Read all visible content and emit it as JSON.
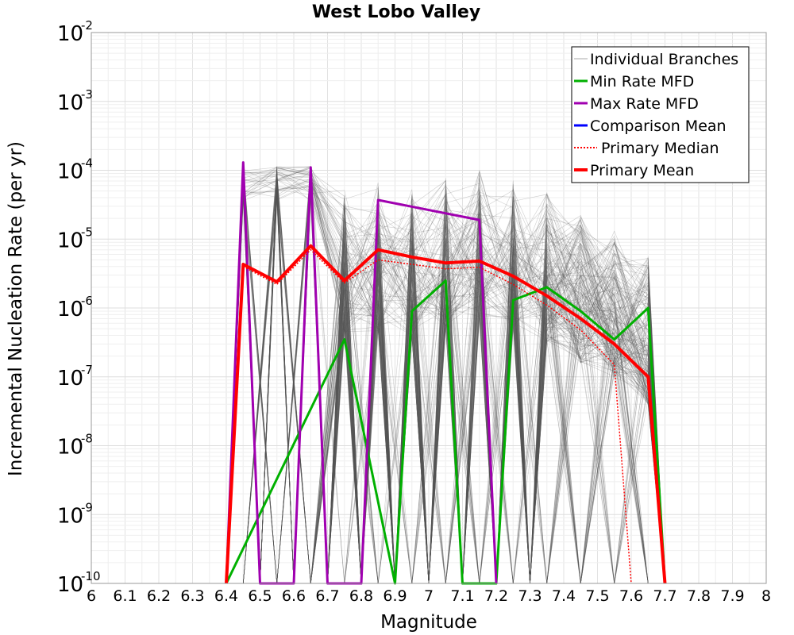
{
  "chart_data": {
    "type": "line",
    "title": "West Lobo Valley",
    "xlabel": "Magnitude",
    "ylabel": "Incremental Nucleation Rate (per yr)",
    "xlim": [
      6,
      8
    ],
    "ylim": [
      1e-10,
      0.01
    ],
    "yscale": "log",
    "grid": true,
    "legend_position": "top-right",
    "x_ticks": [
      "6",
      "6.1",
      "6.2",
      "6.3",
      "6.4",
      "6.5",
      "6.6",
      "6.7",
      "6.8",
      "6.9",
      "7",
      "7.1",
      "7.2",
      "7.3",
      "7.4",
      "7.5",
      "7.6",
      "7.7",
      "7.8",
      "7.9",
      "8"
    ],
    "y_ticks": [
      {
        "base": "10",
        "exp": "-2"
      },
      {
        "base": "10",
        "exp": "-3"
      },
      {
        "base": "10",
        "exp": "-4"
      },
      {
        "base": "10",
        "exp": "-5"
      },
      {
        "base": "10",
        "exp": "-6"
      },
      {
        "base": "10",
        "exp": "-7"
      },
      {
        "base": "10",
        "exp": "-8"
      },
      {
        "base": "10",
        "exp": "-9"
      },
      {
        "base": "10",
        "exp": "-10"
      }
    ],
    "bins": [
      6.45,
      6.55,
      6.65,
      6.75,
      6.85,
      6.95,
      7.05,
      7.15,
      7.25,
      7.35,
      7.45,
      7.55,
      7.65
    ],
    "series": [
      {
        "name": "Individual Branches",
        "color": "#555555",
        "style": "thin",
        "note": "hundreds of logic-tree branches forming a dense gray band",
        "peaks": [
          0.00012,
          0.000115,
          0.000115,
          6e-05,
          7e-05,
          6e-05,
          8e-05,
          0.00011,
          8e-05,
          5e-05,
          2.5e-05,
          1.5e-05,
          6e-06
        ]
      },
      {
        "name": "Min Rate MFD",
        "color": "#00b000",
        "points": [
          [
            6.4,
            1e-10
          ],
          [
            6.75,
            3.5e-07
          ],
          [
            6.9,
            1e-10
          ],
          [
            6.95,
            9e-07
          ],
          [
            7.05,
            2.5e-06
          ],
          [
            7.1,
            1e-10
          ],
          [
            7.2,
            1e-10
          ],
          [
            7.25,
            1.3e-06
          ],
          [
            7.35,
            2e-06
          ],
          [
            7.45,
            9e-07
          ],
          [
            7.55,
            3.5e-07
          ],
          [
            7.65,
            1e-06
          ],
          [
            7.7,
            1e-10
          ]
        ]
      },
      {
        "name": "Max Rate MFD",
        "color": "#a000b0",
        "points": [
          [
            6.4,
            1e-10
          ],
          [
            6.45,
            0.00013
          ],
          [
            6.5,
            1e-10
          ],
          [
            6.6,
            1e-10
          ],
          [
            6.65,
            0.00011
          ],
          [
            6.7,
            1e-10
          ],
          [
            6.8,
            1e-10
          ],
          [
            6.85,
            3.7e-05
          ],
          [
            7.15,
            1.9e-05
          ],
          [
            7.2,
            1e-10
          ]
        ]
      },
      {
        "name": "Comparison Mean",
        "color": "#0000ff",
        "points": []
      },
      {
        "name": "Primary Median",
        "color": "#ff0000",
        "style": "dotted",
        "points": [
          [
            6.4,
            1e-10
          ],
          [
            6.45,
            4e-06
          ],
          [
            6.55,
            2.2e-06
          ],
          [
            6.65,
            7e-06
          ],
          [
            6.75,
            2.3e-06
          ],
          [
            6.85,
            5e-06
          ],
          [
            6.95,
            4.3e-06
          ],
          [
            7.05,
            3.7e-06
          ],
          [
            7.15,
            3.9e-06
          ],
          [
            7.25,
            2.2e-06
          ],
          [
            7.35,
            1.1e-06
          ],
          [
            7.45,
            4.8e-07
          ],
          [
            7.55,
            1.5e-07
          ],
          [
            7.6,
            1e-10
          ]
        ]
      },
      {
        "name": "Primary Mean",
        "color": "#ff0000",
        "points": [
          [
            6.4,
            1e-10
          ],
          [
            6.45,
            4.3e-06
          ],
          [
            6.55,
            2.4e-06
          ],
          [
            6.65,
            8e-06
          ],
          [
            6.75,
            2.5e-06
          ],
          [
            6.85,
            7e-06
          ],
          [
            6.95,
            5.5e-06
          ],
          [
            7.05,
            4.5e-06
          ],
          [
            7.15,
            4.8e-06
          ],
          [
            7.25,
            2.9e-06
          ],
          [
            7.35,
            1.5e-06
          ],
          [
            7.45,
            7e-07
          ],
          [
            7.55,
            3e-07
          ],
          [
            7.65,
            1e-07
          ],
          [
            7.7,
            1e-10
          ]
        ]
      }
    ]
  }
}
